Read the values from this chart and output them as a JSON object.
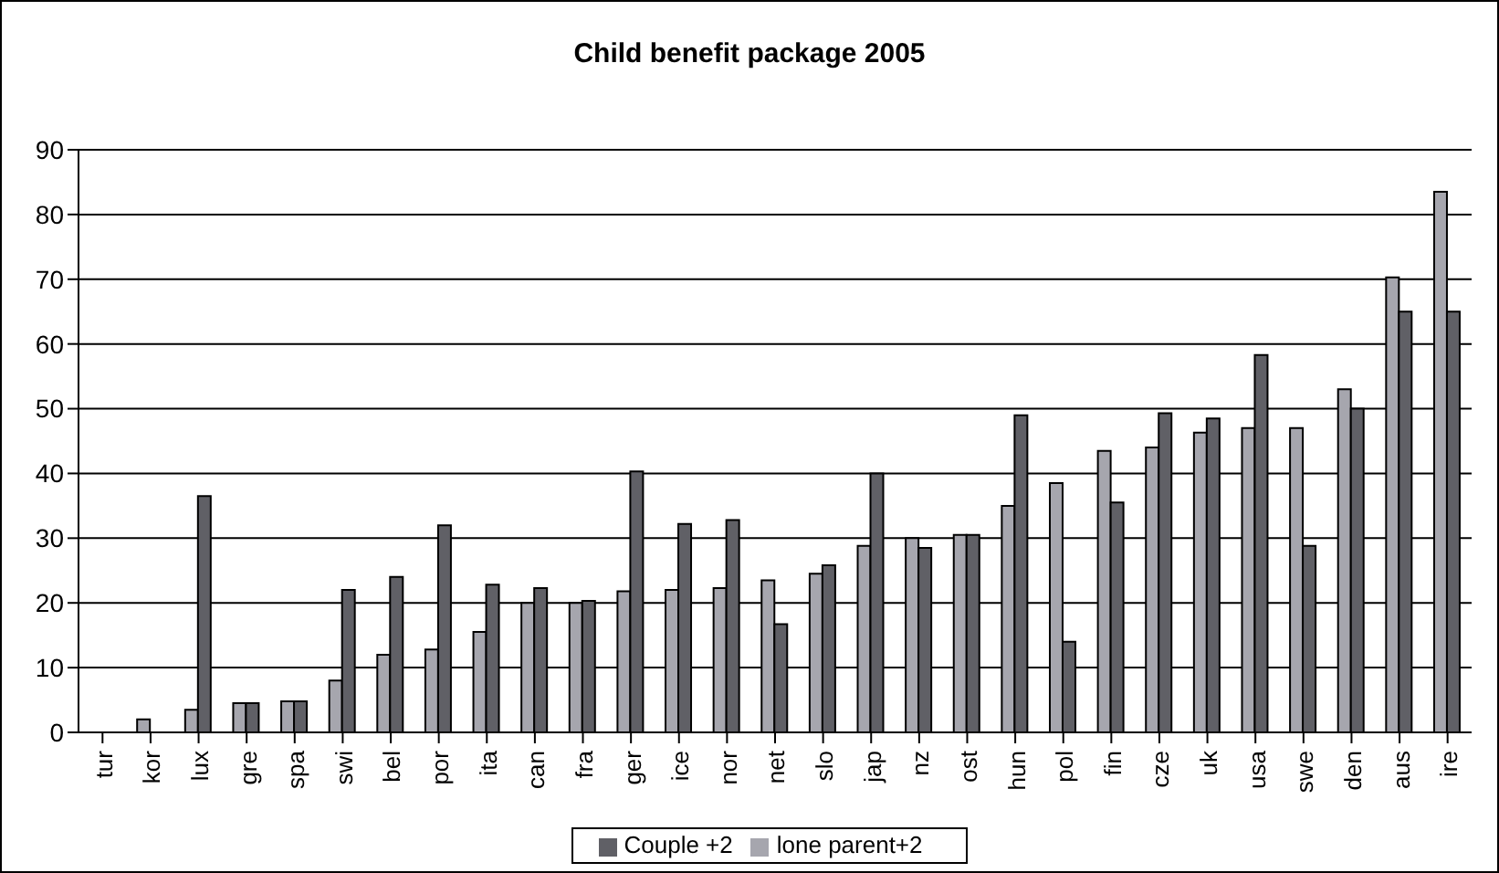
{
  "chart_data": {
    "type": "bar",
    "title": "Child benefit package 2005",
    "categories": [
      "tur",
      "kor",
      "lux",
      "gre",
      "spa",
      "swi",
      "bel",
      "por",
      "ita",
      "can",
      "fra",
      "ger",
      "ice",
      "nor",
      "net",
      "slo",
      "jap",
      "nz",
      "ost",
      "hun",
      "pol",
      "fin",
      "cze",
      "uk",
      "usa",
      "swe",
      "den",
      "aus",
      "ire"
    ],
    "series": [
      {
        "name": "lone parent+2",
        "color": "#a6a6ae",
        "values": [
          0,
          2,
          3.5,
          4.5,
          4.8,
          8,
          12,
          12.8,
          15.5,
          20,
          20,
          21.8,
          22,
          22.3,
          23.5,
          24.5,
          28.8,
          30,
          30.5,
          35,
          38.5,
          43.5,
          44,
          46.3,
          47,
          47,
          53,
          70.3,
          83.5
        ]
      },
      {
        "name": "Couple +2",
        "color": "#606066",
        "values": [
          0,
          0,
          36.5,
          4.5,
          4.8,
          22,
          24,
          32,
          22.8,
          22.3,
          20.3,
          40.3,
          32.2,
          32.8,
          16.7,
          25.8,
          40,
          28.5,
          30.5,
          49,
          14,
          35.5,
          49.3,
          48.5,
          58.3,
          28.8,
          50,
          65,
          65
        ]
      }
    ],
    "ylim": [
      0,
      90
    ],
    "yticks": [
      0,
      10,
      20,
      30,
      40,
      50,
      60,
      70,
      80,
      90
    ],
    "grid": "y",
    "legend": "bottom"
  }
}
